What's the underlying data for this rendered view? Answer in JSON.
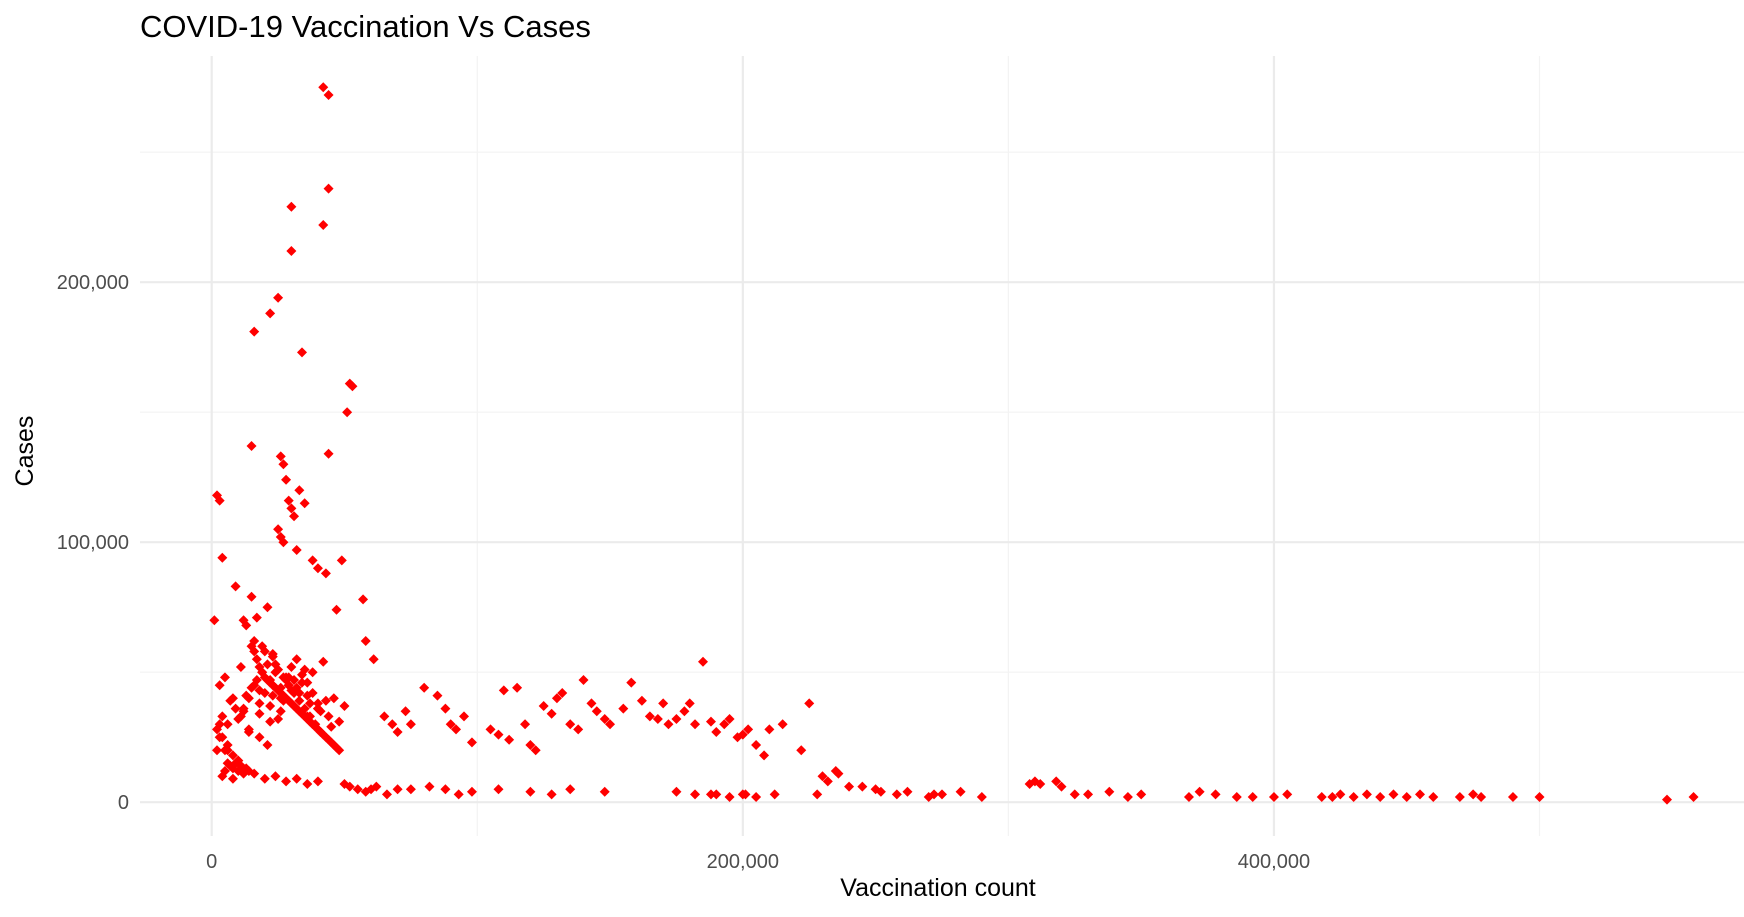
{
  "colors": {
    "point": "#ff0000",
    "grid_major": "#ebebeb",
    "grid_minor": "#f3f3f3",
    "tick_text": "#4d4d4d",
    "background": "#ffffff"
  },
  "chart_data": {
    "type": "scatter",
    "title": "COVID-19 Vaccination Vs Cases",
    "xlabel": "Vaccination count",
    "ylabel": "Cases",
    "xlim": [
      -27000,
      577000
    ],
    "ylim": [
      -13000,
      287000
    ],
    "x_ticks": [
      0,
      200000,
      400000
    ],
    "x_tick_labels": [
      "0",
      "200,000",
      "400,000"
    ],
    "x_minor": [
      100000,
      300000,
      500000
    ],
    "y_ticks": [
      0,
      100000,
      200000
    ],
    "y_tick_labels": [
      "0",
      "100,000",
      "200,000"
    ],
    "y_minor": [
      50000,
      150000,
      250000
    ],
    "grid": true,
    "legend": "none",
    "marker": "diamond",
    "x": [
      42000,
      44000,
      44000,
      30000,
      42000,
      30000,
      25000,
      16000,
      22000,
      34000,
      52000,
      53000,
      44000,
      51000,
      57000,
      15000,
      26000,
      27000,
      28000,
      29000,
      30000,
      31000,
      25000,
      26000,
      27000,
      32000,
      33000,
      35000,
      38000,
      40000,
      43000,
      47000,
      49000,
      1000,
      2000,
      3000,
      4000,
      3000,
      5000,
      6000,
      7000,
      8000,
      9000,
      10000,
      11000,
      12000,
      13000,
      14000,
      15000,
      16000,
      17000,
      18000,
      19000,
      20000,
      21000,
      22000,
      23000,
      24000,
      25000,
      26000,
      27000,
      28000,
      29000,
      30000,
      31000,
      32000,
      33000,
      34000,
      35000,
      36000,
      37000,
      38000,
      39000,
      40000,
      41000,
      42000,
      43000,
      44000,
      45000,
      46000,
      47000,
      48000,
      50000,
      52000,
      55000,
      58000,
      60000,
      62000,
      65000,
      68000,
      70000,
      73000,
      75000,
      80000,
      85000,
      88000,
      90000,
      92000,
      95000,
      98000,
      105000,
      108000,
      110000,
      112000,
      115000,
      118000,
      120000,
      122000,
      125000,
      128000,
      130000,
      132000,
      135000,
      138000,
      140000,
      143000,
      145000,
      148000,
      150000,
      155000,
      158000,
      162000,
      165000,
      168000,
      170000,
      172000,
      175000,
      178000,
      180000,
      182000,
      185000,
      188000,
      190000,
      193000,
      195000,
      198000,
      200000,
      202000,
      205000,
      208000,
      210000,
      225000,
      215000,
      222000,
      230000,
      235000,
      240000,
      250000,
      190000,
      200000,
      201000,
      58000,
      61000,
      66000,
      70000,
      75000,
      82000,
      88000,
      93000,
      98000,
      108000,
      120000,
      128000,
      135000,
      148000,
      175000,
      182000,
      188000,
      195000,
      205000,
      212000,
      228000,
      232000,
      236000,
      245000,
      252000,
      258000,
      262000,
      270000,
      272000,
      275000,
      282000,
      290000,
      308000,
      310000,
      312000,
      318000,
      320000,
      325000,
      330000,
      338000,
      345000,
      350000,
      368000,
      372000,
      378000,
      386000,
      392000,
      400000,
      405000,
      418000,
      422000,
      425000,
      430000,
      435000,
      440000,
      445000,
      450000,
      455000,
      460000,
      470000,
      475000,
      478000,
      490000,
      500000,
      548000,
      558000,
      3000,
      5000,
      8000,
      10000,
      12000,
      14000,
      16000,
      18000,
      20000,
      22000,
      24000,
      26000,
      28000,
      30000,
      32000,
      34000,
      36000,
      38000,
      40000,
      8000,
      12000,
      18000,
      23000,
      27000,
      31000,
      36000,
      40000,
      45000,
      48000,
      6000,
      10000,
      14000,
      18000,
      22000,
      26000,
      11000,
      13000,
      17000,
      21000,
      9000,
      15000,
      19000,
      23000,
      29000,
      33000,
      37000,
      41000,
      6000,
      10000,
      21000,
      25000,
      29000,
      35000,
      43000,
      12000,
      16000,
      20000,
      24000,
      28000,
      32000,
      36000,
      40000,
      44000,
      14000,
      18000,
      22000,
      26000,
      30000,
      34000,
      38000,
      42000,
      46000,
      50000,
      4000,
      8000,
      12000,
      16000,
      20000,
      24000,
      28000,
      32000,
      36000,
      40000,
      2000,
      4000,
      6000,
      2000,
      4000,
      3000,
      5000,
      7000,
      9000,
      11000,
      13000,
      15000,
      17000,
      19000,
      21000,
      23000,
      25000,
      27000,
      29000,
      31000,
      33000,
      35000,
      37000,
      39000,
      41000
    ],
    "y": [
      275000,
      272000,
      236000,
      229000,
      222000,
      212000,
      194000,
      181000,
      188000,
      173000,
      161000,
      160000,
      134000,
      150000,
      78000,
      137000,
      133000,
      130000,
      124000,
      116000,
      113000,
      110000,
      105000,
      102000,
      100000,
      97000,
      120000,
      115000,
      93000,
      90000,
      88000,
      74000,
      93000,
      70000,
      118000,
      116000,
      94000,
      30000,
      12000,
      15000,
      14000,
      13000,
      15000,
      12000,
      14000,
      11000,
      13000,
      12000,
      60000,
      58000,
      55000,
      52000,
      50000,
      48000,
      47000,
      46000,
      45000,
      44000,
      43000,
      42000,
      41000,
      40000,
      39000,
      38000,
      37000,
      36000,
      35000,
      34000,
      33000,
      32000,
      31000,
      30000,
      29000,
      28000,
      27000,
      26000,
      25000,
      24000,
      23000,
      22000,
      21000,
      20000,
      7000,
      6000,
      5000,
      4000,
      5000,
      6000,
      33000,
      30000,
      27000,
      35000,
      30000,
      44000,
      41000,
      36000,
      30000,
      28000,
      33000,
      23000,
      28000,
      26000,
      43000,
      24000,
      44000,
      30000,
      22000,
      20000,
      37000,
      34000,
      40000,
      42000,
      30000,
      28000,
      47000,
      38000,
      35000,
      32000,
      30000,
      36000,
      46000,
      39000,
      33000,
      32000,
      38000,
      30000,
      32000,
      35000,
      38000,
      30000,
      54000,
      31000,
      27000,
      30000,
      32000,
      25000,
      26000,
      28000,
      22000,
      18000,
      28000,
      38000,
      30000,
      20000,
      10000,
      12000,
      6000,
      5000,
      3000,
      3000,
      3000,
      62000,
      55000,
      3000,
      5000,
      5000,
      6000,
      5000,
      3000,
      4000,
      5000,
      4000,
      3000,
      5000,
      4000,
      4000,
      3000,
      3000,
      2000,
      2000,
      3000,
      3000,
      8000,
      11000,
      6000,
      4000,
      3000,
      4000,
      2000,
      3000,
      3000,
      4000,
      2000,
      7000,
      8000,
      7000,
      8000,
      6000,
      3000,
      3000,
      4000,
      2000,
      3000,
      2000,
      4000,
      3000,
      2000,
      2000,
      2000,
      3000,
      2000,
      2000,
      3000,
      2000,
      3000,
      2000,
      3000,
      2000,
      3000,
      2000,
      2000,
      3000,
      2000,
      2000,
      2000,
      1000,
      2000,
      25000,
      20000,
      18000,
      16000,
      35000,
      40000,
      45000,
      38000,
      42000,
      47000,
      50000,
      44000,
      48000,
      52000,
      55000,
      49000,
      46000,
      42000,
      38000,
      40000,
      36000,
      43000,
      41000,
      39000,
      47000,
      33000,
      36000,
      29000,
      31000,
      30000,
      32000,
      28000,
      34000,
      37000,
      40000,
      52000,
      68000,
      71000,
      75000,
      83000,
      79000,
      60000,
      57000,
      45000,
      42000,
      38000,
      35000,
      20000,
      16000,
      22000,
      32000,
      48000,
      51000,
      39000,
      70000,
      62000,
      58000,
      53000,
      47000,
      44000,
      41000,
      36000,
      33000,
      27000,
      25000,
      31000,
      35000,
      43000,
      46000,
      50000,
      54000,
      40000,
      37000,
      10000,
      9000,
      13000,
      11000,
      9000,
      10000,
      8000,
      9000,
      7000,
      8000,
      20000,
      25000,
      22000,
      28000,
      33000,
      45000,
      48000,
      39000,
      36000,
      33000,
      41000,
      44000,
      47000,
      50000,
      53000,
      56000,
      51000,
      48000,
      45000,
      42000,
      39000,
      36000,
      33000,
      30000,
      27000
    ]
  }
}
